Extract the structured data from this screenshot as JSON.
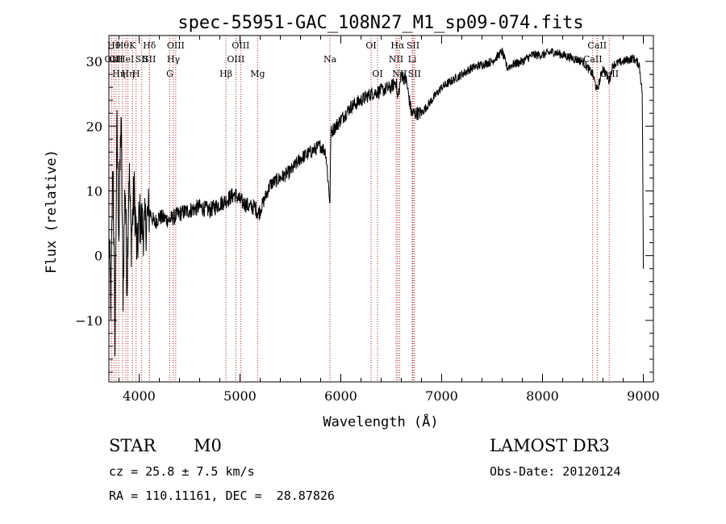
{
  "chart_data": {
    "type": "line",
    "title": "spec-55951-GAC_108N27_M1_sp09-074.fits",
    "xlabel": "Wavelength (Å)",
    "ylabel": "Flux (relative)",
    "xlim": [
      3700,
      9100
    ],
    "ylim": [
      -19.5,
      34
    ],
    "xticks": [
      4000,
      5000,
      6000,
      7000,
      8000,
      9000
    ],
    "yticks": [
      -10,
      0,
      10,
      20,
      30
    ],
    "series": [
      {
        "name": "spectrum",
        "anchors": [
          [
            3700,
            3
          ],
          [
            3720,
            -8
          ],
          [
            3740,
            15
          ],
          [
            3760,
            -12
          ],
          [
            3780,
            20
          ],
          [
            3800,
            3
          ],
          [
            3820,
            22
          ],
          [
            3840,
            -6
          ],
          [
            3860,
            12
          ],
          [
            3880,
            -4
          ],
          [
            3900,
            14
          ],
          [
            3920,
            2
          ],
          [
            3950,
            10
          ],
          [
            3980,
            0
          ],
          [
            4000,
            6
          ],
          [
            4050,
            4
          ],
          [
            4100,
            7
          ],
          [
            4150,
            5
          ],
          [
            4200,
            6
          ],
          [
            4300,
            5.5
          ],
          [
            4400,
            6.5
          ],
          [
            4500,
            7
          ],
          [
            4600,
            7.5
          ],
          [
            4700,
            7
          ],
          [
            4800,
            8
          ],
          [
            4860,
            8.5
          ],
          [
            4900,
            9
          ],
          [
            4950,
            9.5
          ],
          [
            5000,
            8.5
          ],
          [
            5050,
            8
          ],
          [
            5100,
            7.5
          ],
          [
            5150,
            7.5
          ],
          [
            5180,
            6.5
          ],
          [
            5200,
            7
          ],
          [
            5250,
            9
          ],
          [
            5300,
            11
          ],
          [
            5400,
            12
          ],
          [
            5500,
            13
          ],
          [
            5600,
            15
          ],
          [
            5700,
            16
          ],
          [
            5800,
            17
          ],
          [
            5850,
            16
          ],
          [
            5893,
            8
          ],
          [
            5900,
            19
          ],
          [
            5950,
            20
          ],
          [
            6000,
            21
          ],
          [
            6100,
            23
          ],
          [
            6200,
            24
          ],
          [
            6300,
            25
          ],
          [
            6400,
            25.5
          ],
          [
            6500,
            26
          ],
          [
            6550,
            27
          ],
          [
            6563,
            24
          ],
          [
            6600,
            28
          ],
          [
            6650,
            27
          ],
          [
            6700,
            22
          ],
          [
            6800,
            22
          ],
          [
            6900,
            24
          ],
          [
            7000,
            26
          ],
          [
            7100,
            27
          ],
          [
            7200,
            28
          ],
          [
            7300,
            29
          ],
          [
            7400,
            29.5
          ],
          [
            7500,
            30
          ],
          [
            7600,
            31.5
          ],
          [
            7650,
            29
          ],
          [
            7700,
            29.5
          ],
          [
            7800,
            30
          ],
          [
            7900,
            31
          ],
          [
            8000,
            31
          ],
          [
            8100,
            31.5
          ],
          [
            8200,
            31
          ],
          [
            8300,
            30.5
          ],
          [
            8400,
            30
          ],
          [
            8498,
            28
          ],
          [
            8542,
            25.5
          ],
          [
            8600,
            29
          ],
          [
            8662,
            27
          ],
          [
            8700,
            29.5
          ],
          [
            8800,
            30
          ],
          [
            8900,
            30.5
          ],
          [
            8960,
            29.5
          ],
          [
            8990,
            25
          ],
          [
            9000,
            -2
          ]
        ]
      }
    ],
    "lines": [
      {
        "wl": 3727,
        "label": "OII",
        "row": 1
      },
      {
        "wl": 3750,
        "label": "Hθ",
        "row": 0
      },
      {
        "wl": 3771,
        "label": "OII",
        "row": 1
      },
      {
        "wl": 3798,
        "label": "Hη",
        "row": 2
      },
      {
        "wl": 3835,
        "label": "Hθ",
        "row": 0
      },
      {
        "wl": 3869,
        "label": "HeI",
        "row": 1
      },
      {
        "wl": 3889,
        "label": "Hη",
        "row": 2
      },
      {
        "wl": 3934,
        "label": "K",
        "row": 0
      },
      {
        "wl": 3969,
        "label": "H",
        "row": 2
      },
      {
        "wl": 4026,
        "label": "SII",
        "row": 1
      },
      {
        "wl": 4102,
        "label": "Hδ",
        "row": 0
      },
      {
        "wl": 4102,
        "label": "SII",
        "row": 1
      },
      {
        "wl": 4304,
        "label": "G",
        "row": 2
      },
      {
        "wl": 4340,
        "label": "Hγ",
        "row": 1
      },
      {
        "wl": 4363,
        "label": "OIII",
        "row": 0
      },
      {
        "wl": 4861,
        "label": "Hβ",
        "row": 2
      },
      {
        "wl": 4959,
        "label": "OIII",
        "row": 1
      },
      {
        "wl": 5007,
        "label": "OIII",
        "row": 0
      },
      {
        "wl": 5175,
        "label": "Mg",
        "row": 2
      },
      {
        "wl": 5893,
        "label": "Na",
        "row": 1
      },
      {
        "wl": 6300,
        "label": "OI",
        "row": 0
      },
      {
        "wl": 6364,
        "label": "OI",
        "row": 2
      },
      {
        "wl": 6548,
        "label": "NII",
        "row": 1
      },
      {
        "wl": 6563,
        "label": "Hα",
        "row": 0
      },
      {
        "wl": 6583,
        "label": "NII",
        "row": 2
      },
      {
        "wl": 6708,
        "label": "Li",
        "row": 1
      },
      {
        "wl": 6716,
        "label": "SII",
        "row": 0
      },
      {
        "wl": 6731,
        "label": "SII",
        "row": 2
      },
      {
        "wl": 8498,
        "label": "CaII",
        "row": 1
      },
      {
        "wl": 8542,
        "label": "CaII",
        "row": 0
      },
      {
        "wl": 8662,
        "label": "CaII",
        "row": 2
      }
    ]
  },
  "info": {
    "class_label": "STAR",
    "subclass": "M0",
    "survey": "LAMOST DR3",
    "cz": "cz = 25.8 ± 7.5 km/s",
    "obs_date": "Obs-Date: 20120124",
    "radec": "RA = 110.11161, DEC =  28.87826"
  }
}
